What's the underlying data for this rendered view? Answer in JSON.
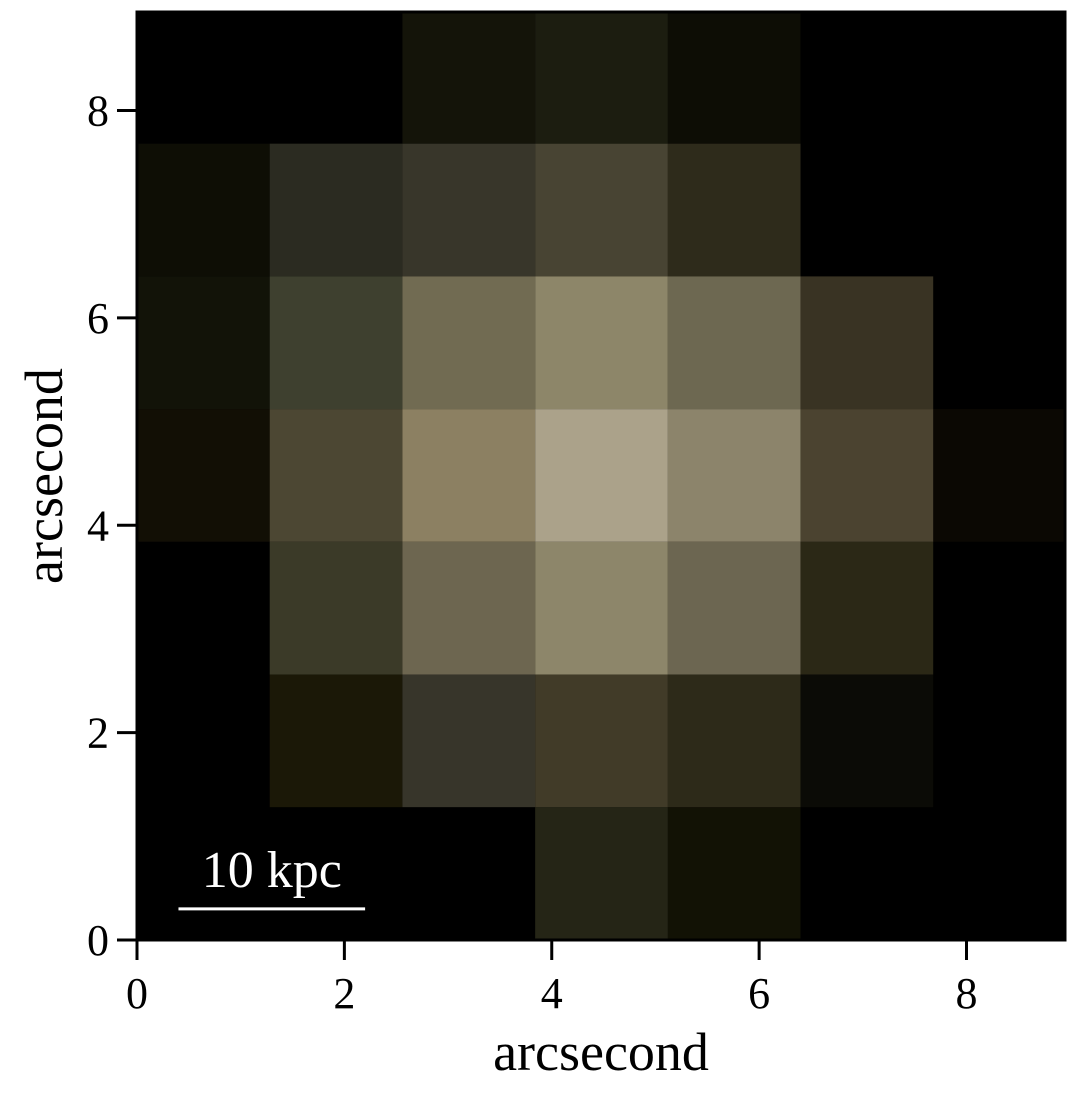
{
  "chart_data": {
    "type": "heatmap",
    "xlabel": "arcsecond",
    "ylabel": "arcsecond",
    "xlim": [
      0,
      8.95
    ],
    "ylim": [
      0,
      8.95
    ],
    "x_ticks": [
      0,
      2,
      4,
      6,
      8
    ],
    "y_ticks": [
      0,
      2,
      4,
      6,
      8
    ],
    "pixel_size": 1.28,
    "rows_top_to_bottom": [
      [
        "#000000",
        "#000000",
        "#141409",
        "#1c1d10",
        "#0d0d05",
        "#000000",
        "#000000"
      ],
      [
        "#0e0e05",
        "#2b2b21",
        "#38362a",
        "#484433",
        "#2e2b1b",
        "#000000",
        "#000000"
      ],
      [
        "#121308",
        "#3e402f",
        "#716b52",
        "#8d8669",
        "#6d6851",
        "#393323",
        "#000000"
      ],
      [
        "#120f05",
        "#4c4733",
        "#8c8062",
        "#aba28a",
        "#8c846b",
        "#4b4330",
        "#0b0803"
      ],
      [
        "#000000",
        "#3b3a28",
        "#6d6650",
        "#8d866a",
        "#6c6651",
        "#2b2816",
        "#000000"
      ],
      [
        "#000000",
        "#1b1807",
        "#37352a",
        "#413b28",
        "#2d2a19",
        "#0b0b06",
        "#000000"
      ],
      [
        "#000000",
        "#000000",
        "#000000",
        "#252516",
        "#121205",
        "#000000",
        "#000000"
      ]
    ],
    "scalebar": {
      "label": "10 kpc",
      "x_start": 0.4,
      "x_end": 2.2,
      "y": 0.3
    }
  }
}
